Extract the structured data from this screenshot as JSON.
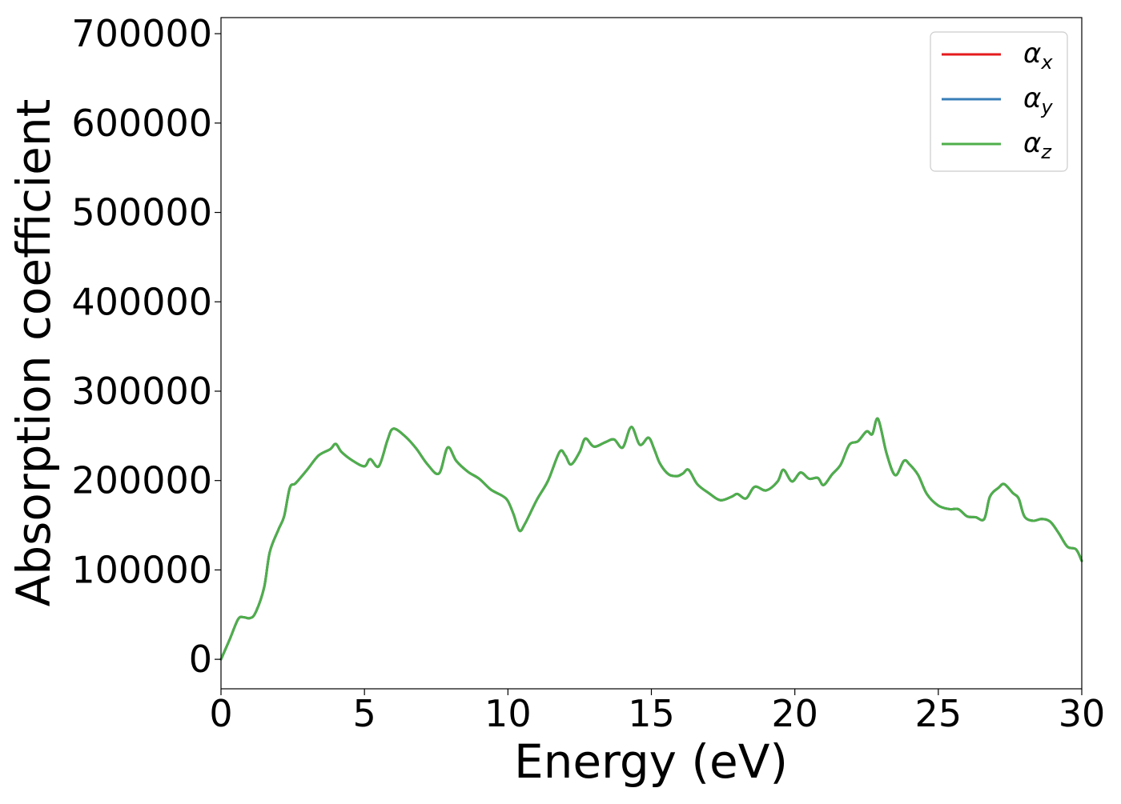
{
  "chart_data": {
    "type": "line",
    "title": "",
    "xlabel": "Energy (eV)",
    "ylabel": "Absorption coefficient",
    "xlim": [
      0,
      30
    ],
    "ylim": [
      -33000,
      718000
    ],
    "xticks": [
      0,
      5,
      10,
      15,
      20,
      25,
      30
    ],
    "xtick_labels": [
      "0",
      "5",
      "10",
      "15",
      "20",
      "25",
      "30"
    ],
    "yticks": [
      0,
      100000,
      200000,
      300000,
      400000,
      500000,
      600000,
      700000
    ],
    "ytick_labels": [
      "0",
      "100000",
      "200000",
      "300000",
      "400000",
      "500000",
      "600000",
      "700000"
    ],
    "grid": false,
    "legend_position": "top-right",
    "x": [
      0.0,
      0.3,
      0.6,
      0.8,
      1.0,
      1.2,
      1.5,
      1.7,
      2.0,
      2.2,
      2.4,
      2.6,
      3.0,
      3.4,
      3.8,
      4.0,
      4.2,
      4.6,
      5.0,
      5.2,
      5.5,
      5.8,
      6.0,
      6.4,
      6.8,
      7.2,
      7.6,
      7.9,
      8.2,
      8.6,
      9.0,
      9.4,
      9.8,
      10.0,
      10.2,
      10.4,
      10.6,
      11.0,
      11.4,
      11.8,
      12.0,
      12.2,
      12.5,
      12.7,
      13.0,
      13.4,
      13.7,
      14.0,
      14.3,
      14.6,
      14.9,
      15.1,
      15.3,
      15.6,
      15.9,
      16.1,
      16.3,
      16.6,
      17.0,
      17.4,
      17.8,
      18.0,
      18.3,
      18.6,
      19.0,
      19.4,
      19.6,
      19.9,
      20.2,
      20.5,
      20.8,
      21.0,
      21.3,
      21.6,
      21.9,
      22.2,
      22.5,
      22.7,
      22.9,
      23.2,
      23.5,
      23.8,
      24.0,
      24.3,
      24.6,
      25.0,
      25.4,
      25.7,
      26.0,
      26.3,
      26.6,
      26.8,
      27.1,
      27.3,
      27.6,
      27.8,
      28.0,
      28.3,
      28.6,
      28.9,
      29.2,
      29.5,
      29.8,
      30.0
    ],
    "series": [
      {
        "name": "α_x",
        "color": "#e41a1c",
        "values": [
          0,
          22000,
          45000,
          47000,
          46000,
          52000,
          80000,
          120000,
          145000,
          160000,
          192000,
          197000,
          212000,
          228000,
          235000,
          241000,
          232000,
          222000,
          216000,
          224000,
          216000,
          245000,
          258000,
          250000,
          236000,
          218000,
          208000,
          237000,
          222000,
          210000,
          202000,
          190000,
          183000,
          177000,
          162000,
          144000,
          152000,
          178000,
          200000,
          232000,
          228000,
          218000,
          232000,
          247000,
          238000,
          243000,
          246000,
          237000,
          260000,
          240000,
          248000,
          235000,
          219000,
          207000,
          205000,
          208000,
          212000,
          196000,
          186000,
          178000,
          182000,
          185000,
          180000,
          193000,
          189000,
          199000,
          212000,
          199000,
          209000,
          202000,
          203000,
          195000,
          207000,
          218000,
          240000,
          244000,
          255000,
          252000,
          269000,
          230000,
          206000,
          222000,
          218000,
          206000,
          185000,
          172000,
          168000,
          168000,
          160000,
          159000,
          157000,
          182000,
          192000,
          196000,
          186000,
          180000,
          160000,
          155000,
          157000,
          154000,
          141000,
          126000,
          123000,
          110000
        ]
      },
      {
        "name": "α_y",
        "color": "#377eb8",
        "values": [
          0,
          22000,
          45000,
          47000,
          46000,
          52000,
          80000,
          120000,
          145000,
          160000,
          192000,
          197000,
          212000,
          228000,
          235000,
          241000,
          232000,
          222000,
          216000,
          224000,
          216000,
          245000,
          258000,
          250000,
          236000,
          218000,
          208000,
          237000,
          222000,
          210000,
          202000,
          190000,
          183000,
          177000,
          162000,
          144000,
          152000,
          178000,
          200000,
          232000,
          228000,
          218000,
          232000,
          247000,
          238000,
          243000,
          246000,
          237000,
          260000,
          240000,
          248000,
          235000,
          219000,
          207000,
          205000,
          208000,
          212000,
          196000,
          186000,
          178000,
          182000,
          185000,
          180000,
          193000,
          189000,
          199000,
          212000,
          199000,
          209000,
          202000,
          203000,
          195000,
          207000,
          218000,
          240000,
          244000,
          255000,
          252000,
          269000,
          230000,
          206000,
          222000,
          218000,
          206000,
          185000,
          172000,
          168000,
          168000,
          160000,
          159000,
          157000,
          182000,
          192000,
          196000,
          186000,
          180000,
          160000,
          155000,
          157000,
          154000,
          141000,
          126000,
          123000,
          110000
        ]
      },
      {
        "name": "α_z",
        "color": "#4daf4a",
        "values": [
          0,
          22000,
          45000,
          47000,
          46000,
          52000,
          80000,
          120000,
          145000,
          160000,
          192000,
          197000,
          212000,
          228000,
          235000,
          241000,
          232000,
          222000,
          216000,
          224000,
          216000,
          245000,
          258000,
          250000,
          236000,
          218000,
          208000,
          237000,
          222000,
          210000,
          202000,
          190000,
          183000,
          177000,
          162000,
          144000,
          152000,
          178000,
          200000,
          232000,
          228000,
          218000,
          232000,
          247000,
          238000,
          243000,
          246000,
          237000,
          260000,
          240000,
          248000,
          235000,
          219000,
          207000,
          205000,
          208000,
          212000,
          196000,
          186000,
          178000,
          182000,
          185000,
          180000,
          193000,
          189000,
          199000,
          212000,
          199000,
          209000,
          202000,
          203000,
          195000,
          207000,
          218000,
          240000,
          244000,
          255000,
          252000,
          269000,
          230000,
          206000,
          222000,
          218000,
          206000,
          185000,
          172000,
          168000,
          168000,
          160000,
          159000,
          157000,
          182000,
          192000,
          196000,
          186000,
          180000,
          160000,
          155000,
          157000,
          154000,
          141000,
          126000,
          123000,
          110000
        ]
      }
    ],
    "legend": [
      {
        "symbol": "α",
        "subscript": "x",
        "color": "#e41a1c"
      },
      {
        "symbol": "α",
        "subscript": "y",
        "color": "#377eb8"
      },
      {
        "symbol": "α",
        "subscript": "z",
        "color": "#4daf4a"
      }
    ]
  }
}
